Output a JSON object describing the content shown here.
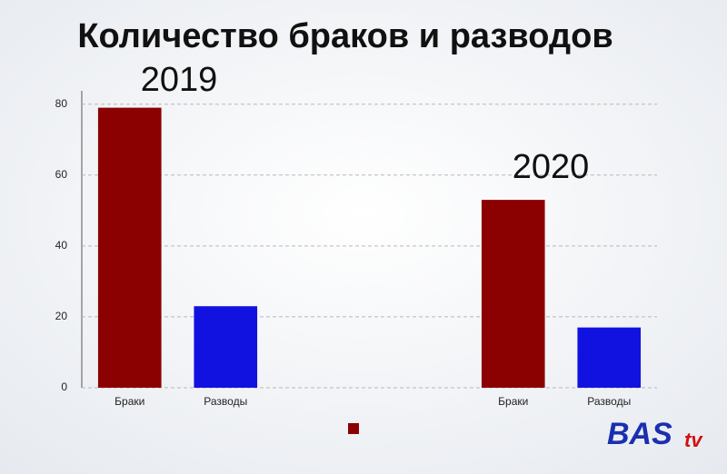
{
  "chart_data": {
    "type": "bar",
    "title": "Количество браков и разводов",
    "categories": [
      "Браки",
      "Разводы",
      null,
      null,
      "Браки",
      "Разводы"
    ],
    "values": [
      79,
      23,
      null,
      null,
      53,
      17
    ],
    "colors": [
      "#8b0000",
      "#1212e0",
      null,
      null,
      "#8b0000",
      "#1212e0"
    ],
    "ylim": [
      0,
      83
    ],
    "yticks": [
      0,
      20,
      40,
      60,
      80
    ],
    "grid": true,
    "annotations": [
      "2019",
      "2020"
    ]
  },
  "logo": {
    "text": "BAS",
    "suffix": "tv"
  }
}
